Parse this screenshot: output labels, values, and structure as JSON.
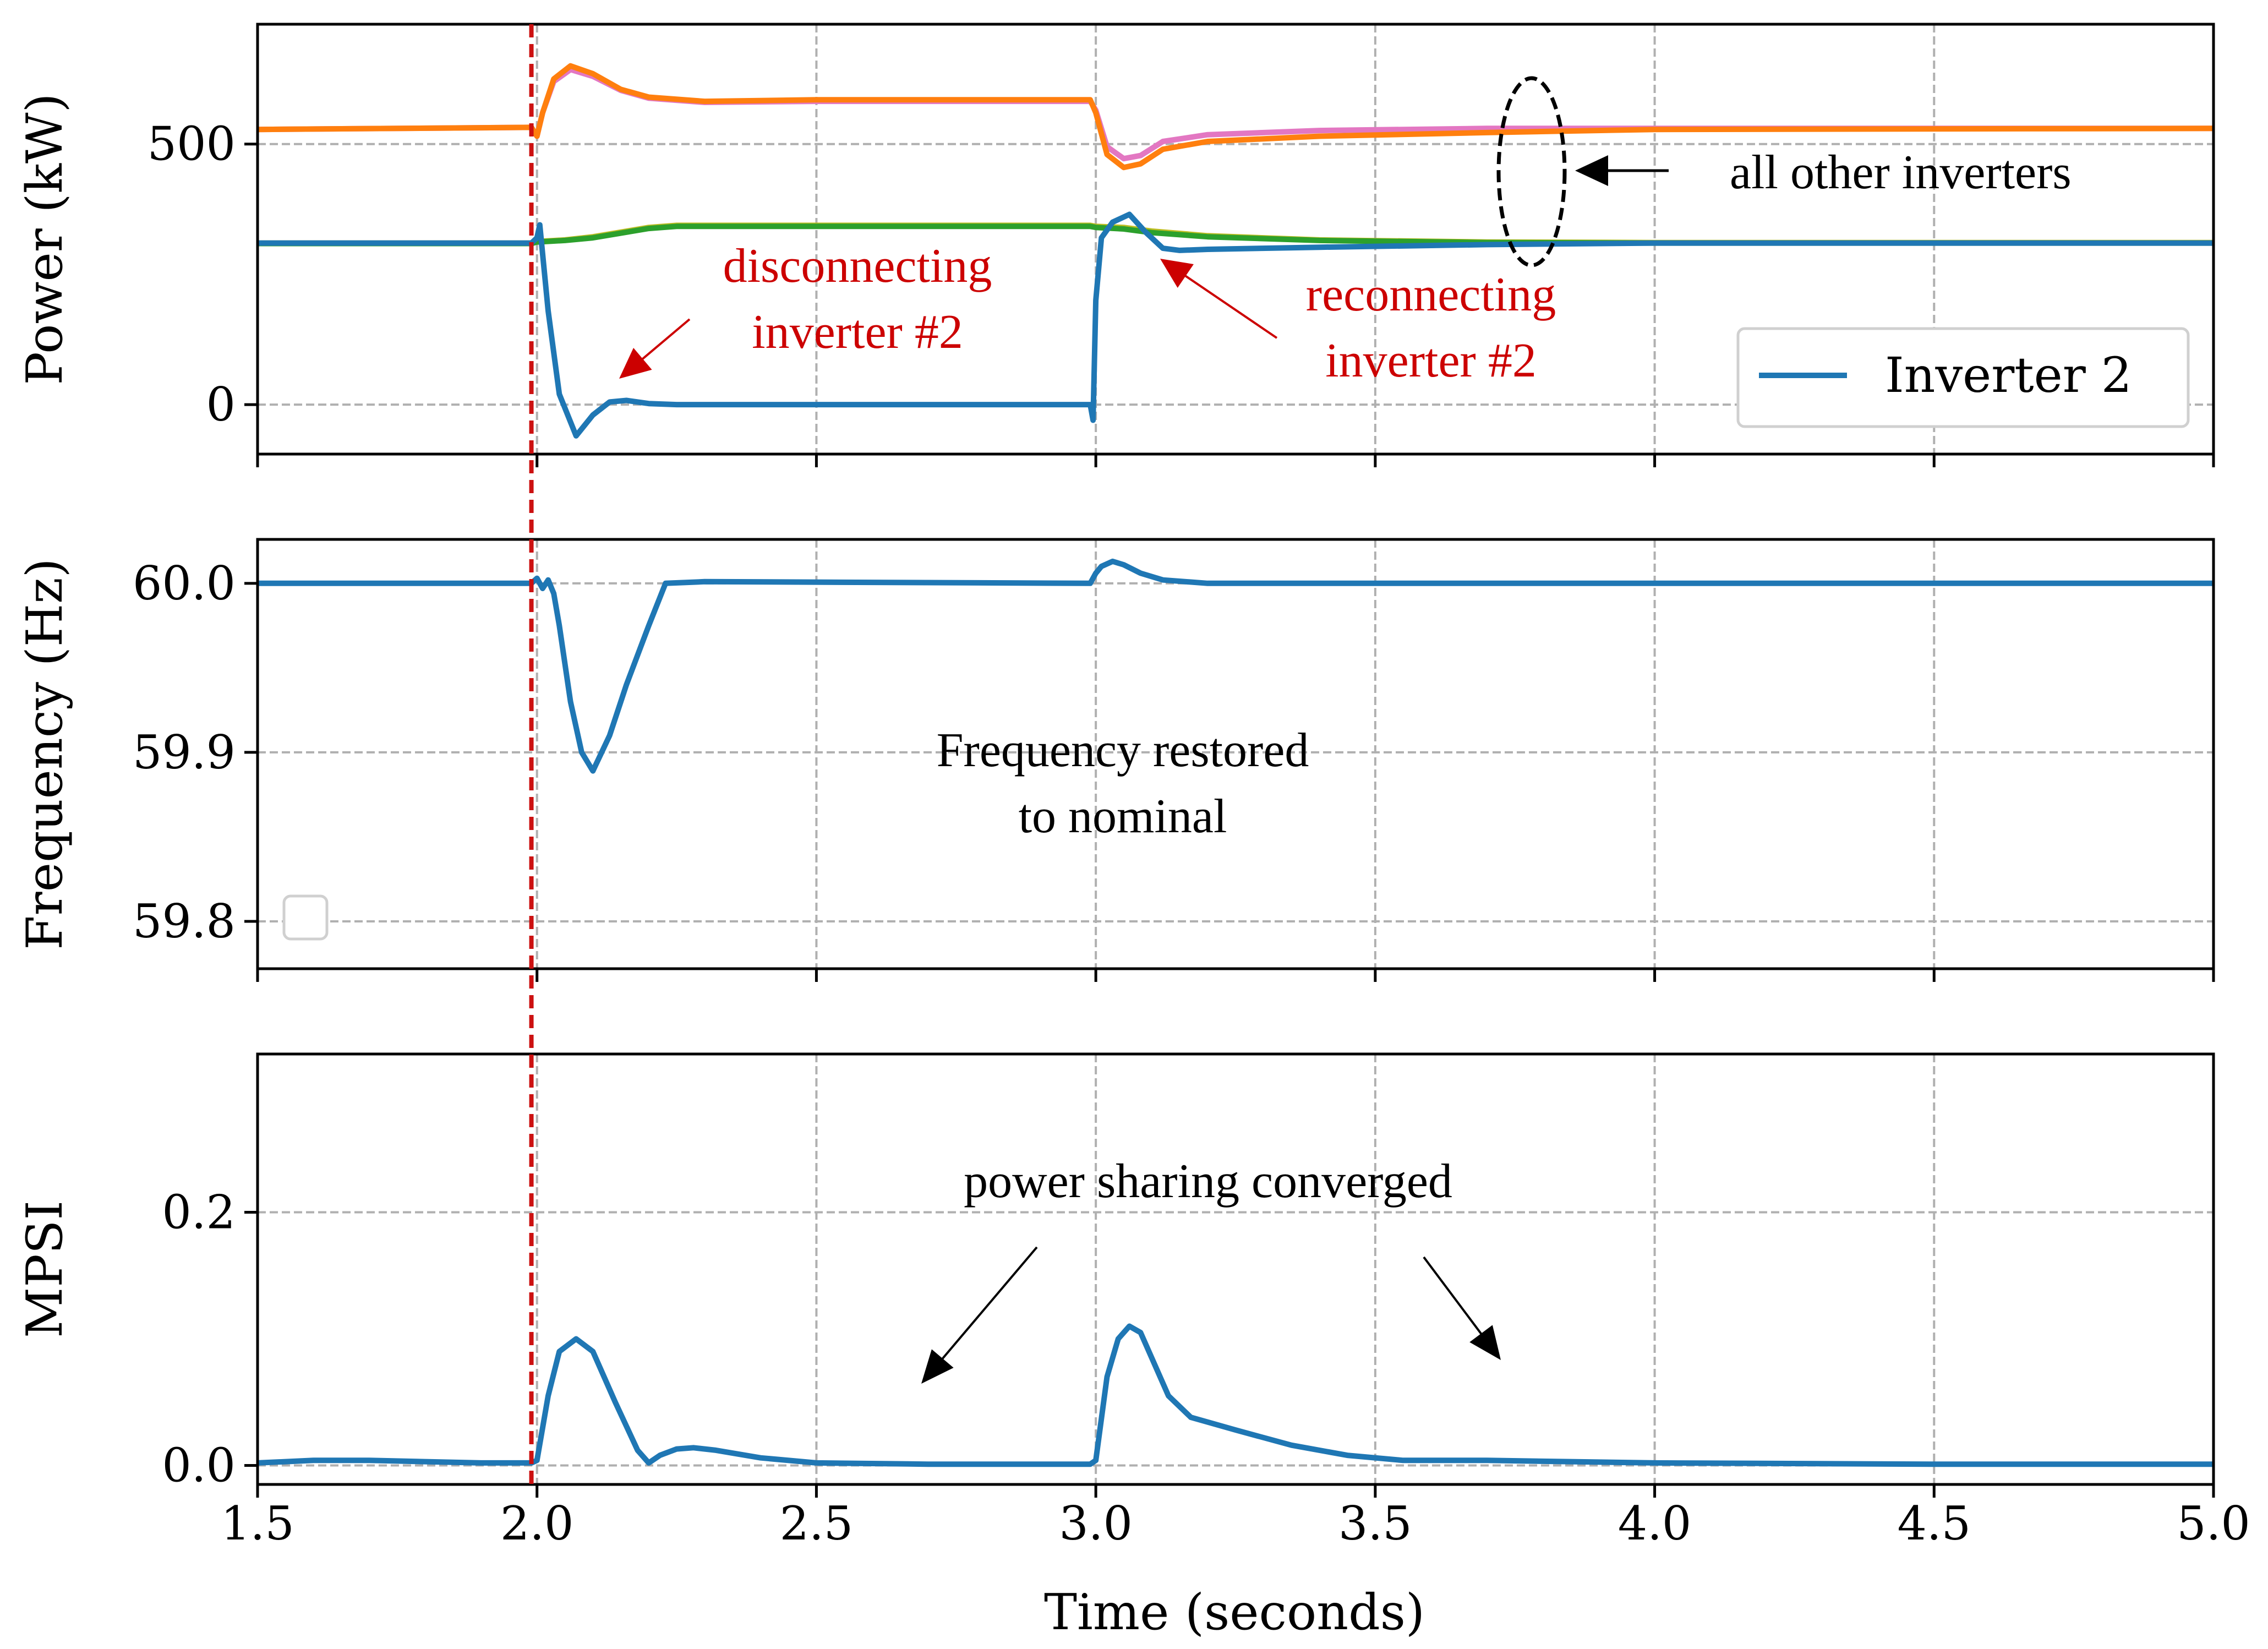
{
  "figure": {
    "xlabel": "Time (seconds)"
  },
  "chart_data": [
    {
      "type": "line",
      "panel": "power",
      "ylabel": "Power (kW)",
      "xlim": [
        1.5,
        5.0
      ],
      "ylim": [
        -95,
        730
      ],
      "xticks": [
        1.5,
        2.0,
        2.5,
        3.0,
        3.5,
        4.0,
        4.5,
        5.0
      ],
      "yticks": [
        0,
        500
      ],
      "ytick_labels": [
        "0",
        "500"
      ],
      "grid": true,
      "legend": {
        "position": "lower-right",
        "entries": [
          "Inverter 2"
        ]
      },
      "colors": {
        "inverter2": "#1f77b4",
        "group_high_a": "#ff7f0e",
        "group_high_b": "#e377c2",
        "group_low_a": "#2ca02c",
        "group_low_b": "#bcbd22"
      },
      "series": [
        {
          "name": "Inverter 2",
          "color": "#1f77b4",
          "x": [
            1.5,
            1.99,
            2.0,
            2.005,
            2.02,
            2.04,
            2.07,
            2.1,
            2.13,
            2.16,
            2.2,
            2.25,
            2.3,
            2.6,
            2.99,
            2.995,
            3.0,
            3.01,
            3.03,
            3.06,
            3.09,
            3.12,
            3.15,
            3.2,
            3.4,
            3.7,
            4.0,
            4.5,
            5.0
          ],
          "y": [
            310,
            310,
            320,
            345,
            180,
            20,
            -60,
            -20,
            5,
            8,
            2,
            0,
            0,
            0,
            0,
            -30,
            200,
            320,
            350,
            365,
            330,
            300,
            296,
            298,
            302,
            307,
            310,
            310,
            310
          ]
        },
        {
          "name": "Other inverters (high group, orange)",
          "color": "#ff7f0e",
          "x": [
            1.5,
            1.99,
            2.0,
            2.01,
            2.03,
            2.06,
            2.1,
            2.15,
            2.2,
            2.3,
            2.5,
            2.99,
            3.0,
            3.02,
            3.05,
            3.08,
            3.12,
            3.2,
            3.4,
            3.7,
            4.0,
            5.0
          ],
          "y": [
            528,
            532,
            515,
            560,
            625,
            650,
            635,
            605,
            590,
            582,
            585,
            585,
            560,
            480,
            455,
            462,
            490,
            505,
            515,
            522,
            528,
            530
          ]
        },
        {
          "name": "Other inverters (high group, pink)",
          "color": "#e377c2",
          "x": [
            1.5,
            1.99,
            2.0,
            2.01,
            2.03,
            2.06,
            2.1,
            2.15,
            2.2,
            2.3,
            2.5,
            2.99,
            3.0,
            3.02,
            3.05,
            3.08,
            3.12,
            3.2,
            3.4,
            3.7,
            4.0,
            5.0
          ],
          "y": [
            528,
            532,
            515,
            560,
            620,
            643,
            630,
            603,
            588,
            580,
            582,
            582,
            565,
            495,
            472,
            478,
            505,
            518,
            526,
            530,
            530,
            530
          ]
        },
        {
          "name": "Other inverters (low group, green)",
          "color": "#2ca02c",
          "x": [
            1.5,
            1.99,
            2.0,
            2.05,
            2.1,
            2.2,
            2.25,
            2.4,
            2.99,
            3.0,
            3.05,
            3.1,
            3.2,
            3.4,
            3.7,
            4.0,
            5.0
          ],
          "y": [
            309,
            309,
            312,
            315,
            320,
            338,
            342,
            342,
            342,
            340,
            337,
            330,
            322,
            315,
            311,
            310,
            310
          ]
        },
        {
          "name": "Other inverters (low group, olive)",
          "color": "#bcbd22",
          "x": [
            1.5,
            1.99,
            2.0,
            2.05,
            2.1,
            2.2,
            2.25,
            2.4,
            2.99,
            3.0,
            3.05,
            3.1,
            3.2,
            3.4,
            3.7,
            4.0,
            5.0
          ],
          "y": [
            310,
            310,
            313,
            316,
            322,
            340,
            344,
            344,
            344,
            342,
            340,
            333,
            324,
            316,
            312,
            311,
            311
          ]
        }
      ],
      "annotations": [
        {
          "lines": [
            "disconnecting",
            "inverter #2"
          ],
          "color": "#cc0000"
        },
        {
          "lines": [
            "reconnecting",
            "inverter #2"
          ],
          "color": "#cc0000"
        },
        {
          "lines": [
            "all other inverters"
          ],
          "color": "#000000"
        }
      ]
    },
    {
      "type": "line",
      "panel": "frequency",
      "ylabel": "Frequency (Hz)",
      "xlim": [
        1.5,
        5.0
      ],
      "ylim": [
        59.772,
        60.026
      ],
      "xticks": [
        1.5,
        2.0,
        2.5,
        3.0,
        3.5,
        4.0,
        4.5,
        5.0
      ],
      "yticks": [
        59.8,
        59.9,
        60.0
      ],
      "ytick_labels": [
        "59.8",
        "59.9",
        "60.0"
      ],
      "grid": true,
      "legend": {
        "position": "lower-left",
        "entries": []
      },
      "series": [
        {
          "name": "Frequency",
          "color": "#1f77b4",
          "x": [
            1.5,
            1.99,
            2.0,
            2.01,
            2.02,
            2.03,
            2.04,
            2.06,
            2.08,
            2.1,
            2.13,
            2.16,
            2.2,
            2.23,
            2.3,
            2.99,
            3.0,
            3.01,
            3.03,
            3.05,
            3.08,
            3.12,
            3.2,
            3.5,
            5.0
          ],
          "y": [
            60.0,
            60.0,
            60.003,
            59.997,
            60.002,
            59.994,
            59.975,
            59.93,
            59.9,
            59.889,
            59.91,
            59.94,
            59.975,
            60.0,
            60.001,
            60.0,
            60.006,
            60.01,
            60.013,
            60.011,
            60.006,
            60.002,
            60.0,
            60.0,
            60.0
          ]
        }
      ],
      "annotations": [
        {
          "lines": [
            "Frequency restored",
            "to nominal"
          ],
          "color": "#000000"
        }
      ]
    },
    {
      "type": "line",
      "panel": "mpsi",
      "ylabel": "MPSI",
      "xlim": [
        1.5,
        5.0
      ],
      "ylim": [
        -0.015,
        0.325
      ],
      "xticks": [
        1.5,
        2.0,
        2.5,
        3.0,
        3.5,
        4.0,
        4.5,
        5.0
      ],
      "xtick_labels": [
        "1.5",
        "2.0",
        "2.5",
        "3.0",
        "3.5",
        "4.0",
        "4.5",
        "5.0"
      ],
      "yticks": [
        0.0,
        0.2
      ],
      "ytick_labels": [
        "0.0",
        "0.2"
      ],
      "grid": true,
      "series": [
        {
          "name": "MPSI",
          "color": "#1f77b4",
          "x": [
            1.5,
            1.6,
            1.7,
            1.8,
            1.9,
            1.99,
            2.0,
            2.02,
            2.04,
            2.07,
            2.1,
            2.14,
            2.18,
            2.2,
            2.22,
            2.25,
            2.28,
            2.32,
            2.4,
            2.5,
            2.7,
            2.99,
            3.0,
            3.02,
            3.04,
            3.06,
            3.08,
            3.1,
            3.13,
            3.17,
            3.25,
            3.35,
            3.45,
            3.55,
            3.7,
            4.0,
            4.5,
            5.0
          ],
          "y": [
            0.002,
            0.004,
            0.004,
            0.003,
            0.002,
            0.002,
            0.004,
            0.055,
            0.09,
            0.1,
            0.09,
            0.05,
            0.012,
            0.002,
            0.008,
            0.013,
            0.014,
            0.012,
            0.006,
            0.002,
            0.001,
            0.001,
            0.004,
            0.07,
            0.1,
            0.11,
            0.105,
            0.085,
            0.055,
            0.038,
            0.028,
            0.016,
            0.008,
            0.004,
            0.004,
            0.002,
            0.001,
            0.001
          ]
        }
      ],
      "annotations": [
        {
          "lines": [
            "power sharing converged"
          ],
          "color": "#000000"
        }
      ]
    }
  ]
}
